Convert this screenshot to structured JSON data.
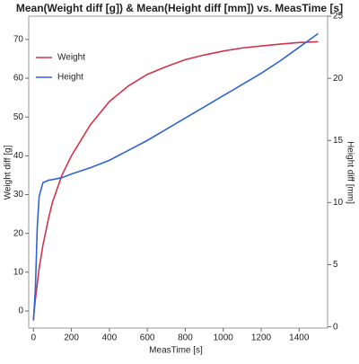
{
  "chart_data": {
    "type": "line",
    "title": "Mean(Weight diff [g]) & Mean(Height diff [mm]) vs. MeasTime [s]",
    "x_label": "MeasTime [s]",
    "y_label": "Weight diff [g]",
    "y2_label": "Height diff [mm]",
    "x": [
      0,
      10,
      20,
      30,
      50,
      80,
      100,
      150,
      200,
      300,
      400,
      500,
      600,
      700,
      800,
      900,
      1000,
      1100,
      1200,
      1300,
      1400,
      1500
    ],
    "series": [
      {
        "name": "Weight",
        "color": "#d2334a",
        "axis": "y",
        "values": [
          -2,
          3,
          7,
          11,
          17,
          24,
          28,
          35,
          40,
          48,
          54,
          58,
          61,
          63,
          64.8,
          66,
          67,
          67.8,
          68.3,
          68.8,
          69.2,
          69.4
        ]
      },
      {
        "name": "Height",
        "color": "#2f62d4",
        "axis": "y2",
        "values": [
          0.5,
          3,
          8,
          10.5,
          11.6,
          11.8,
          11.85,
          12,
          12.3,
          12.8,
          13.4,
          14.2,
          15,
          15.9,
          16.8,
          17.7,
          18.6,
          19.5,
          20.4,
          21.4,
          22.5,
          23.6
        ]
      }
    ],
    "xlim": [
      -25,
      1550
    ],
    "xticks": [
      0,
      200,
      400,
      600,
      800,
      1000,
      1200,
      1400
    ],
    "ylim": [
      -4.4,
      76
    ],
    "yticks": [
      0,
      10,
      20,
      30,
      40,
      50,
      60,
      70
    ],
    "y2lim": [
      -0.1,
      25
    ],
    "y2ticks": [
      0,
      5,
      10,
      15,
      20,
      25
    ],
    "legend": "top-left",
    "grid": false
  }
}
